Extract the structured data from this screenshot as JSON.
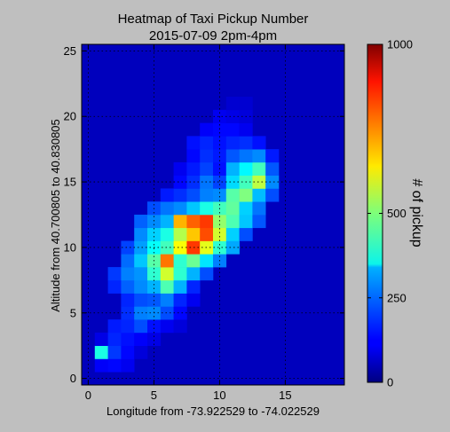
{
  "chart_data": {
    "type": "heatmap",
    "title": "Heatmap of Taxi Pickup Number",
    "subtitle": "2015-07-09 2pm-4pm",
    "xlabel": "Longitude from -73.922529 to  -74.022529",
    "ylabel": "Altitude from 40.700805 to 40.830805",
    "xlim": [
      -0.5,
      19.5
    ],
    "ylim": [
      -0.5,
      25.5
    ],
    "xticks": [
      0,
      5,
      10,
      15
    ],
    "yticks": [
      0,
      5,
      10,
      15,
      20,
      25
    ],
    "grid": true,
    "grid_style": "dotted",
    "colormap": "jet",
    "colorbar": {
      "label": "# of pickup",
      "range": [
        0,
        1000
      ],
      "ticks": [
        0,
        250,
        500,
        1000
      ]
    },
    "background_value": 60,
    "cells": [
      [
        1,
        1,
        120
      ],
      [
        2,
        1,
        130
      ],
      [
        3,
        1,
        110
      ],
      [
        1,
        2,
        400
      ],
      [
        2,
        2,
        180
      ],
      [
        3,
        2,
        130
      ],
      [
        4,
        2,
        90
      ],
      [
        1,
        3,
        100
      ],
      [
        2,
        3,
        160
      ],
      [
        3,
        3,
        140
      ],
      [
        4,
        3,
        120
      ],
      [
        5,
        3,
        100
      ],
      [
        2,
        4,
        150
      ],
      [
        3,
        4,
        160
      ],
      [
        4,
        4,
        200
      ],
      [
        5,
        4,
        140
      ],
      [
        6,
        4,
        110
      ],
      [
        7,
        4,
        90
      ],
      [
        3,
        5,
        170
      ],
      [
        4,
        5,
        250
      ],
      [
        5,
        5,
        260
      ],
      [
        6,
        5,
        200
      ],
      [
        7,
        5,
        130
      ],
      [
        3,
        6,
        160
      ],
      [
        4,
        6,
        200
      ],
      [
        5,
        6,
        210
      ],
      [
        6,
        6,
        250
      ],
      [
        7,
        6,
        160
      ],
      [
        8,
        6,
        110
      ],
      [
        2,
        7,
        160
      ],
      [
        3,
        7,
        220
      ],
      [
        4,
        7,
        260
      ],
      [
        5,
        7,
        300
      ],
      [
        6,
        7,
        450
      ],
      [
        7,
        7,
        300
      ],
      [
        8,
        7,
        160
      ],
      [
        2,
        8,
        180
      ],
      [
        3,
        8,
        250
      ],
      [
        4,
        8,
        270
      ],
      [
        5,
        8,
        420
      ],
      [
        6,
        8,
        580
      ],
      [
        7,
        8,
        420
      ],
      [
        8,
        8,
        300
      ],
      [
        9,
        8,
        200
      ],
      [
        3,
        9,
        230
      ],
      [
        4,
        9,
        320
      ],
      [
        5,
        9,
        460
      ],
      [
        6,
        9,
        760
      ],
      [
        7,
        9,
        420
      ],
      [
        8,
        9,
        480
      ],
      [
        9,
        9,
        350
      ],
      [
        10,
        9,
        250
      ],
      [
        3,
        10,
        190
      ],
      [
        4,
        10,
        280
      ],
      [
        5,
        10,
        380
      ],
      [
        6,
        10,
        440
      ],
      [
        7,
        10,
        620
      ],
      [
        8,
        10,
        820
      ],
      [
        9,
        10,
        600
      ],
      [
        10,
        10,
        420
      ],
      [
        11,
        10,
        290
      ],
      [
        4,
        11,
        260
      ],
      [
        5,
        11,
        330
      ],
      [
        6,
        11,
        400
      ],
      [
        7,
        11,
        550
      ],
      [
        8,
        11,
        680
      ],
      [
        9,
        11,
        800
      ],
      [
        10,
        11,
        580
      ],
      [
        11,
        11,
        330
      ],
      [
        12,
        11,
        200
      ],
      [
        4,
        12,
        220
      ],
      [
        5,
        12,
        260
      ],
      [
        6,
        12,
        300
      ],
      [
        7,
        12,
        700
      ],
      [
        8,
        12,
        780
      ],
      [
        9,
        12,
        820
      ],
      [
        10,
        12,
        520
      ],
      [
        11,
        12,
        450
      ],
      [
        12,
        12,
        320
      ],
      [
        13,
        12,
        210
      ],
      [
        5,
        13,
        200
      ],
      [
        6,
        13,
        240
      ],
      [
        7,
        13,
        260
      ],
      [
        8,
        13,
        320
      ],
      [
        9,
        13,
        400
      ],
      [
        10,
        13,
        440
      ],
      [
        11,
        13,
        470
      ],
      [
        12,
        13,
        330
      ],
      [
        13,
        13,
        240
      ],
      [
        6,
        14,
        150
      ],
      [
        7,
        14,
        170
      ],
      [
        8,
        14,
        200
      ],
      [
        9,
        14,
        250
      ],
      [
        10,
        14,
        260
      ],
      [
        11,
        14,
        460
      ],
      [
        12,
        14,
        500
      ],
      [
        13,
        14,
        310
      ],
      [
        14,
        14,
        200
      ],
      [
        7,
        15,
        130
      ],
      [
        8,
        15,
        170
      ],
      [
        9,
        15,
        240
      ],
      [
        10,
        15,
        190
      ],
      [
        11,
        15,
        340
      ],
      [
        12,
        15,
        440
      ],
      [
        13,
        15,
        560
      ],
      [
        14,
        15,
        260
      ],
      [
        7,
        16,
        110
      ],
      [
        8,
        16,
        150
      ],
      [
        9,
        16,
        190
      ],
      [
        10,
        16,
        140
      ],
      [
        11,
        16,
        300
      ],
      [
        12,
        16,
        370
      ],
      [
        13,
        16,
        440
      ],
      [
        14,
        16,
        210
      ],
      [
        8,
        17,
        130
      ],
      [
        9,
        17,
        170
      ],
      [
        10,
        17,
        150
      ],
      [
        11,
        17,
        210
      ],
      [
        12,
        17,
        240
      ],
      [
        13,
        17,
        260
      ],
      [
        14,
        17,
        150
      ],
      [
        8,
        18,
        140
      ],
      [
        9,
        18,
        160
      ],
      [
        10,
        18,
        140
      ],
      [
        11,
        18,
        160
      ],
      [
        12,
        18,
        170
      ],
      [
        13,
        18,
        140
      ],
      [
        9,
        19,
        120
      ],
      [
        10,
        19,
        130
      ],
      [
        11,
        19,
        130
      ],
      [
        12,
        19,
        110
      ],
      [
        10,
        20,
        110
      ],
      [
        11,
        20,
        100
      ],
      [
        12,
        20,
        90
      ],
      [
        11,
        21,
        80
      ],
      [
        12,
        21,
        80
      ]
    ]
  }
}
